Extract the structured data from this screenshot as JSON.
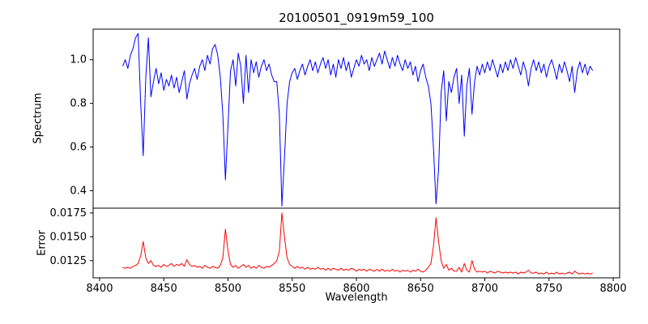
{
  "chart_data": {
    "type": "line",
    "title": "20100501_0919m59_100",
    "xlabel": "Wavelength",
    "grid": false,
    "legend": null,
    "xlim": [
      8395,
      8805
    ],
    "xticks": [
      8400,
      8450,
      8500,
      8550,
      8600,
      8650,
      8700,
      8750,
      8800
    ],
    "xtick_labels": [
      "8400",
      "8450",
      "8500",
      "8550",
      "8600",
      "8650",
      "8700",
      "8750",
      "8800"
    ],
    "x_start": 8418,
    "x_step": 2,
    "panels": [
      {
        "name": "spectrum",
        "ylabel": "Spectrum",
        "color": "#0000ff",
        "ylim": [
          0.32,
          1.14
        ],
        "yticks": [
          0.4,
          0.6,
          0.8,
          1.0
        ],
        "ytick_labels": [
          "0.4",
          "0.6",
          "0.8",
          "1.0"
        ],
        "values": [
          0.97,
          1.0,
          0.96,
          1.02,
          1.05,
          1.1,
          1.12,
          0.8,
          0.56,
          0.92,
          1.1,
          0.83,
          0.9,
          0.96,
          0.89,
          0.94,
          0.86,
          0.91,
          0.88,
          0.93,
          0.87,
          0.92,
          0.85,
          0.9,
          0.95,
          0.82,
          0.89,
          0.93,
          0.96,
          0.91,
          0.97,
          1.0,
          0.95,
          1.02,
          0.98,
          1.05,
          1.07,
          1.02,
          0.92,
          0.75,
          0.45,
          0.7,
          0.95,
          1.0,
          0.88,
          1.03,
          0.97,
          0.8,
          1.02,
          0.85,
          1.0,
          0.94,
          0.99,
          0.92,
          0.97,
          1.0,
          0.95,
          0.98,
          0.93,
          0.9,
          0.9,
          0.75,
          0.33,
          0.55,
          0.8,
          0.9,
          0.94,
          0.96,
          0.91,
          0.95,
          0.98,
          0.93,
          0.97,
          1.0,
          0.95,
          0.99,
          0.94,
          0.98,
          1.01,
          0.96,
          1.0,
          0.93,
          0.98,
          0.92,
          1.0,
          0.96,
          1.01,
          0.95,
          0.99,
          0.92,
          0.96,
          1.0,
          0.97,
          1.02,
          0.98,
          1.0,
          0.95,
          1.01,
          0.97,
          1.0,
          1.03,
          0.98,
          1.04,
          1.0,
          0.96,
          1.01,
          0.97,
          1.02,
          0.98,
          0.95,
          1.0,
          0.96,
          0.99,
          0.93,
          0.97,
          0.9,
          0.95,
          0.98,
          0.92,
          0.88,
          0.8,
          0.6,
          0.34,
          0.5,
          0.85,
          0.95,
          0.72,
          0.9,
          0.85,
          0.92,
          0.96,
          0.8,
          0.93,
          0.65,
          0.88,
          0.96,
          0.75,
          0.9,
          0.97,
          0.93,
          0.98,
          0.94,
          0.99,
          0.95,
          1.0,
          0.96,
          0.92,
          0.98,
          0.94,
          0.99,
          0.95,
          1.0,
          0.96,
          1.01,
          0.97,
          0.93,
          0.99,
          0.95,
          0.88,
          0.96,
          1.0,
          0.95,
          0.99,
          0.94,
          0.98,
          0.92,
          0.97,
          1.0,
          0.96,
          0.91,
          0.98,
          0.94,
          0.99,
          0.95,
          0.9,
          0.97,
          0.85,
          0.95,
          0.99,
          0.94,
          0.98,
          0.93,
          0.97,
          0.95
        ]
      },
      {
        "name": "error",
        "ylabel": "Error",
        "color": "#ff0000",
        "ylim": [
          0.0107,
          0.018
        ],
        "yticks": [
          0.0125,
          0.015,
          0.0175
        ],
        "ytick_labels": [
          "0.0125",
          "0.0150",
          "0.0175"
        ],
        "values": [
          0.0118,
          0.0117,
          0.0118,
          0.0117,
          0.0119,
          0.012,
          0.0122,
          0.013,
          0.0145,
          0.0128,
          0.0122,
          0.0125,
          0.012,
          0.0119,
          0.012,
          0.0118,
          0.0121,
          0.0119,
          0.012,
          0.0122,
          0.0119,
          0.0121,
          0.012,
          0.0122,
          0.0119,
          0.0126,
          0.0121,
          0.0119,
          0.012,
          0.0118,
          0.0119,
          0.0117,
          0.012,
          0.0118,
          0.0117,
          0.0119,
          0.0118,
          0.0117,
          0.012,
          0.0128,
          0.0158,
          0.0135,
          0.0121,
          0.0118,
          0.012,
          0.0117,
          0.0119,
          0.0121,
          0.0118,
          0.012,
          0.0117,
          0.0119,
          0.0117,
          0.012,
          0.0118,
          0.0117,
          0.0119,
          0.0118,
          0.012,
          0.0122,
          0.0125,
          0.0135,
          0.0175,
          0.015,
          0.0128,
          0.0121,
          0.0119,
          0.0117,
          0.0119,
          0.0117,
          0.0118,
          0.0116,
          0.0118,
          0.0116,
          0.0117,
          0.0116,
          0.0118,
          0.0116,
          0.0117,
          0.0115,
          0.0117,
          0.0115,
          0.0117,
          0.0116,
          0.0115,
          0.0117,
          0.0115,
          0.0116,
          0.0115,
          0.0117,
          0.0116,
          0.0114,
          0.0116,
          0.0115,
          0.0116,
          0.0114,
          0.0116,
          0.0115,
          0.0114,
          0.0116,
          0.0114,
          0.0116,
          0.0114,
          0.0115,
          0.0114,
          0.0116,
          0.0114,
          0.0115,
          0.0113,
          0.0115,
          0.0114,
          0.0115,
          0.0113,
          0.0115,
          0.0114,
          0.0116,
          0.0114,
          0.0113,
          0.0115,
          0.0118,
          0.0122,
          0.014,
          0.017,
          0.0145,
          0.0125,
          0.0117,
          0.0121,
          0.0115,
          0.0117,
          0.0114,
          0.0114,
          0.0118,
          0.0113,
          0.0122,
          0.0115,
          0.0113,
          0.0125,
          0.0116,
          0.0113,
          0.0114,
          0.0113,
          0.0114,
          0.0112,
          0.0114,
          0.0113,
          0.0112,
          0.0114,
          0.0113,
          0.0112,
          0.0113,
          0.0112,
          0.0113,
          0.0112,
          0.0113,
          0.0111,
          0.0113,
          0.0112,
          0.0113,
          0.0115,
          0.0112,
          0.0112,
          0.0113,
          0.0111,
          0.0112,
          0.0111,
          0.0113,
          0.0111,
          0.0112,
          0.0111,
          0.0113,
          0.0111,
          0.0112,
          0.0111,
          0.0112,
          0.0113,
          0.0111,
          0.0114,
          0.0112,
          0.0111,
          0.0112,
          0.0111,
          0.0112,
          0.0111,
          0.0112
        ]
      }
    ]
  }
}
